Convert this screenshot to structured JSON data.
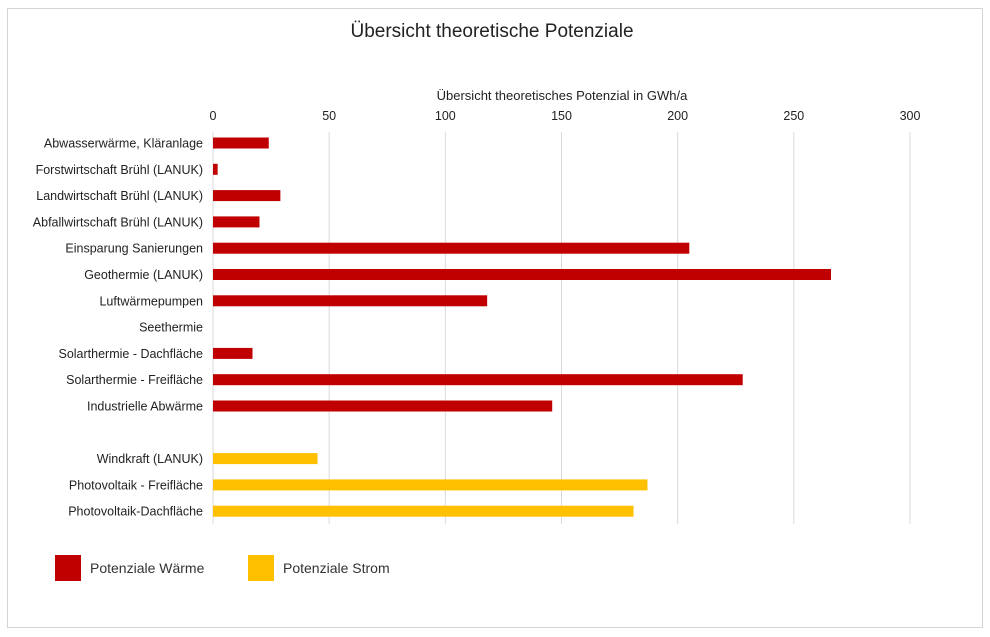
{
  "chart_data": {
    "type": "bar",
    "orientation": "horizontal",
    "title": "Übersicht theoretische Potenziale",
    "xlabel": "Übersicht theoretisches Potenzial in GWh/a",
    "ylabel": "",
    "xlim": [
      0,
      300
    ],
    "xticks": [
      0,
      50,
      100,
      150,
      200,
      250,
      300
    ],
    "xtick_labels": [
      "0",
      "50",
      "100",
      "150",
      "200",
      "250",
      "300"
    ],
    "grid": true,
    "categories": [
      "Abwasserwärme, Kläranlage",
      "Forstwirtschaft Brühl (LANUK)",
      "Landwirtschaft Brühl (LANUK)",
      "Abfallwirtschaft Brühl (LANUK)",
      "Einsparung Sanierungen",
      "Geothermie (LANUK)",
      "Luftwärmepumpen",
      "Seethermie",
      "Solarthermie - Dachfläche",
      "Solarthermie - Freifläche",
      "Industrielle Abwärme",
      "Windkraft (LANUK)",
      "Photovoltaik - Freifläche",
      "Photovoltaik-Dachfläche"
    ],
    "series": [
      {
        "name": "Potenziale Wärme",
        "color": "#c00000",
        "values": [
          24,
          2,
          29,
          20,
          205,
          266,
          118,
          0,
          17,
          228,
          146,
          null,
          null,
          null
        ]
      },
      {
        "name": "Potenziale Strom",
        "color": "#ffc000",
        "values": [
          null,
          null,
          null,
          null,
          null,
          null,
          null,
          null,
          null,
          null,
          null,
          45,
          187,
          181
        ]
      }
    ],
    "legend_position": "bottom-left"
  },
  "legend": {
    "items": [
      {
        "label": "Potenziale Wärme",
        "color": "#c00000"
      },
      {
        "label": "Potenziale Strom",
        "color": "#ffc000"
      }
    ]
  }
}
